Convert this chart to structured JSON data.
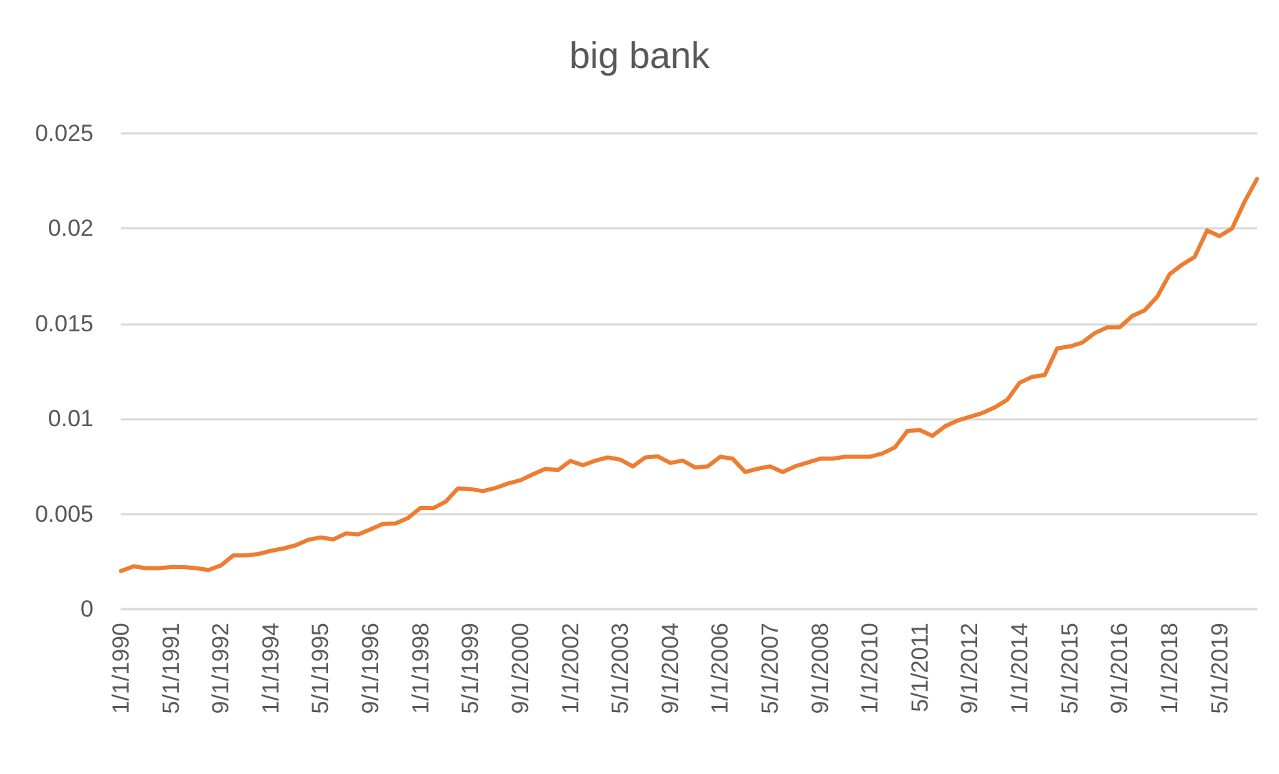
{
  "chart_data": {
    "type": "line",
    "title": "big bank",
    "categories": [
      "1/1/1990",
      null,
      null,
      null,
      "5/1/1991",
      null,
      null,
      null,
      "9/1/1992",
      null,
      null,
      null,
      "1/1/1994",
      null,
      null,
      null,
      "5/1/1995",
      null,
      null,
      null,
      "9/1/1996",
      null,
      null,
      null,
      "1/1/1998",
      null,
      null,
      null,
      "5/1/1999",
      null,
      null,
      null,
      "9/1/2000",
      null,
      null,
      null,
      "1/1/2002",
      null,
      null,
      null,
      "5/1/2003",
      null,
      null,
      null,
      "9/1/2004",
      null,
      null,
      null,
      "1/1/2006",
      null,
      null,
      null,
      "5/1/2007",
      null,
      null,
      null,
      "9/1/2008",
      null,
      null,
      null,
      "1/1/2010",
      null,
      null,
      null,
      "5/1/2011",
      null,
      null,
      null,
      "9/1/2012",
      null,
      null,
      null,
      "1/1/2014",
      null,
      null,
      null,
      "5/1/2015",
      null,
      null,
      null,
      "9/1/2016",
      null,
      null,
      null,
      "1/1/2018",
      null,
      null,
      null,
      "5/1/2019",
      null,
      null,
      null
    ],
    "series": [
      {
        "color": "#ed7d31",
        "values": [
          0.002,
          0.00224,
          0.00215,
          0.00215,
          0.0022,
          0.0022,
          0.00215,
          0.00205,
          0.00229,
          0.00282,
          0.00282,
          0.00289,
          0.00306,
          0.00318,
          0.00335,
          0.00364,
          0.00376,
          0.00366,
          0.00397,
          0.00392,
          0.00419,
          0.00448,
          0.0045,
          0.00479,
          0.00532,
          0.0053,
          0.00564,
          0.00634,
          0.0063,
          0.0062,
          0.00636,
          0.0066,
          0.00677,
          0.00708,
          0.00737,
          0.0073,
          0.00778,
          0.00756,
          0.0078,
          0.00797,
          0.00785,
          0.00749,
          0.00797,
          0.00802,
          0.00768,
          0.0078,
          0.00744,
          0.0075,
          0.008,
          0.0079,
          0.0072,
          0.00737,
          0.0075,
          0.0072,
          0.0075,
          0.0077,
          0.0079,
          0.0079,
          0.008,
          0.008,
          0.008,
          0.00818,
          0.0085,
          0.00936,
          0.0094,
          0.0091,
          0.0096,
          0.0099,
          0.0101,
          0.0103,
          0.0106,
          0.011,
          0.0119,
          0.0122,
          0.0123,
          0.0137,
          0.0138,
          0.014,
          0.0145,
          0.0148,
          0.0148,
          0.0154,
          0.0157,
          0.0164,
          0.0176,
          0.0181,
          0.0185,
          0.0199,
          0.0196,
          0.02,
          0.0214,
          0.0226
        ]
      }
    ],
    "ylim": [
      0,
      0.025
    ],
    "yticks": [
      0,
      0.005,
      0.01,
      0.015,
      0.02,
      0.025
    ],
    "grid": "y",
    "marker": "none",
    "line_style": "solid"
  }
}
